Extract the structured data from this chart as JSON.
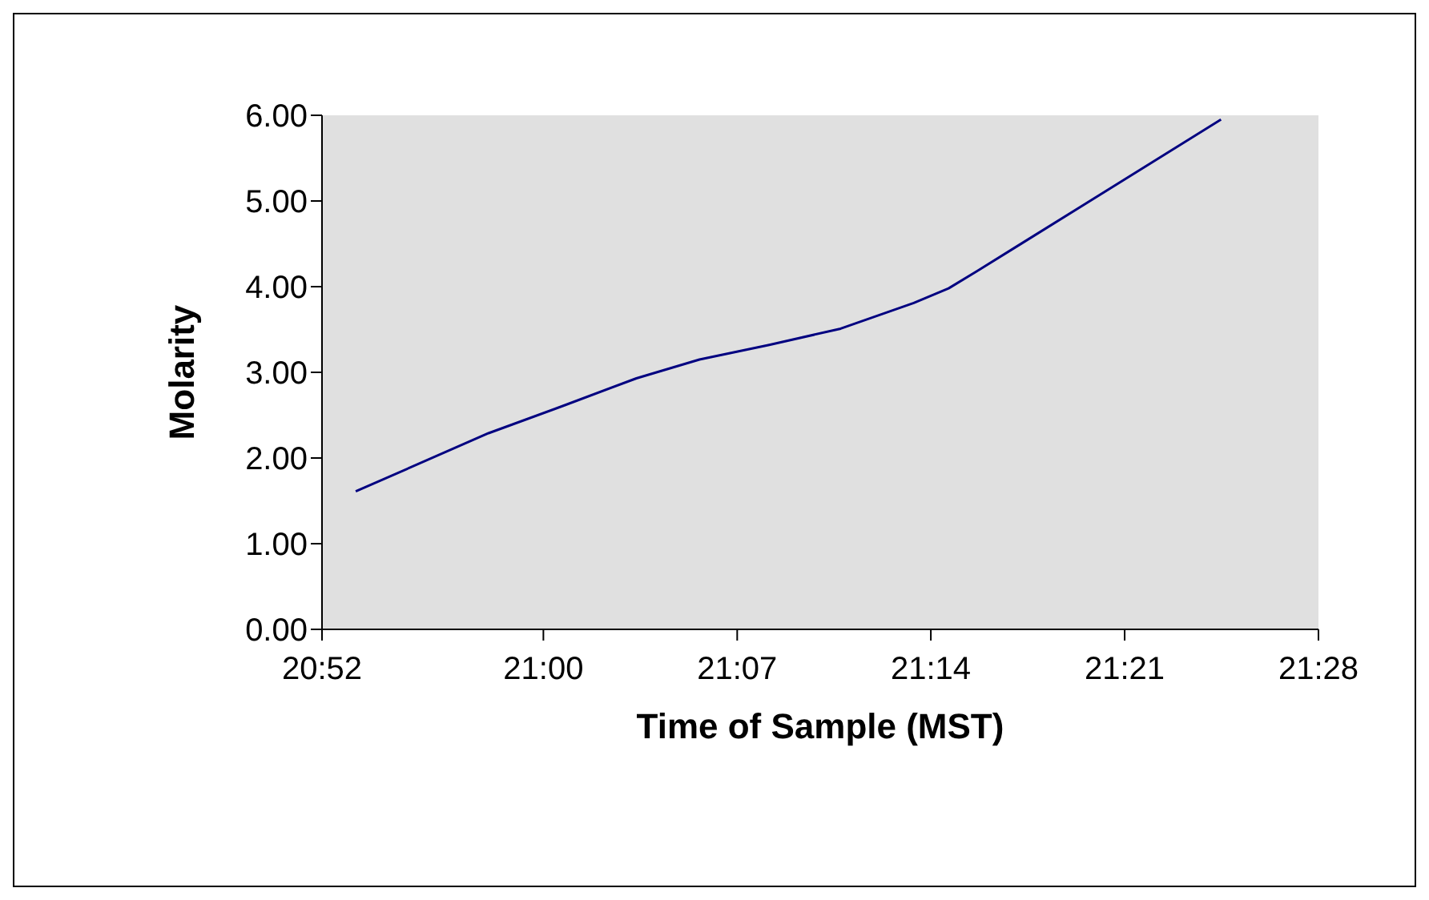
{
  "chart_data": {
    "type": "line",
    "xlabel": "Time of Sample (MST)",
    "ylabel": "Molarity",
    "x": [
      20.887,
      20.967,
      21.012,
      21.056,
      21.094,
      21.136,
      21.179,
      21.223,
      21.244,
      21.261,
      21.408
    ],
    "series": [
      {
        "color": "#000080",
        "values": [
          1.61,
          2.29,
          2.61,
          2.93,
          3.15,
          3.32,
          3.51,
          3.81,
          3.98,
          4.18,
          5.95
        ]
      }
    ],
    "xlim": [
      20.8667,
      21.4667
    ],
    "xticks": [
      {
        "value": 20.8667,
        "label": "20:52"
      },
      {
        "value": 21.0,
        "label": "21:00"
      },
      {
        "value": 21.1167,
        "label": "21:07"
      },
      {
        "value": 21.2333,
        "label": "21:14"
      },
      {
        "value": 21.35,
        "label": "21:21"
      },
      {
        "value": 21.4667,
        "label": "21:28"
      }
    ],
    "ylim": [
      0,
      6
    ],
    "yticks": [
      {
        "value": 0,
        "label": "0.00"
      },
      {
        "value": 1,
        "label": "1.00"
      },
      {
        "value": 2,
        "label": "2.00"
      },
      {
        "value": 3,
        "label": "3.00"
      },
      {
        "value": 4,
        "label": "4.00"
      },
      {
        "value": 5,
        "label": "5.00"
      },
      {
        "value": 6,
        "label": "6.00"
      }
    ],
    "grid": false,
    "legend": false,
    "marker": "none",
    "line_style": "solid"
  }
}
